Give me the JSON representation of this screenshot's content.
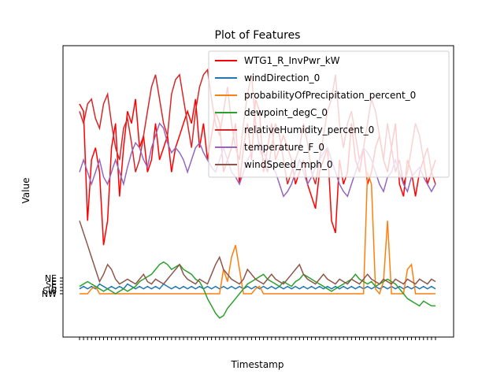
{
  "chart_data": {
    "type": "line",
    "title": "Plot of Features",
    "xlabel": "Timestamp",
    "ylabel": "Value",
    "legend_position": "top-right",
    "grid": false,
    "y_category_ticks": [
      "NW",
      "SW",
      "S",
      "SE",
      "E",
      "NE"
    ],
    "series": [
      {
        "name": "WTG1_R_InvPwr_kW",
        "color": "#ff0000",
        "values": [
          0.78,
          0.75,
          0.3,
          0.55,
          0.6,
          0.5,
          0.2,
          0.3,
          0.6,
          0.7,
          0.4,
          0.6,
          0.75,
          0.7,
          0.8,
          0.6,
          0.65,
          0.5,
          0.55,
          0.7,
          0.55,
          0.6,
          0.65,
          0.5,
          0.6,
          0.65,
          0.7,
          0.75,
          0.7,
          0.8,
          0.6,
          0.7,
          0.55,
          0.65,
          0.75,
          0.7,
          0.5,
          0.55,
          0.6,
          0.7,
          0.45,
          0.6,
          0.7,
          0.55,
          0.8,
          0.75,
          0.5,
          0.6,
          0.7,
          0.55,
          0.6,
          0.65,
          0.6,
          0.55,
          0.45,
          0.5,
          0.55,
          0.45,
          0.4,
          0.35,
          0.5,
          0.55,
          0.6,
          0.3,
          0.25,
          0.55,
          0.45,
          0.5,
          0.7,
          0.55,
          0.5,
          0.6,
          0.45,
          0.5,
          0.6,
          0.65,
          0.55,
          0.5,
          0.6,
          0.7,
          0.45,
          0.4,
          0.55,
          0.5,
          0.4,
          0.5,
          0.55,
          0.45,
          0.5,
          0.55
        ]
      },
      {
        "name": "windDirection_0",
        "color": "#1f77b4",
        "values": [
          0.02,
          0.03,
          0.02,
          0.03,
          0.02,
          0.04,
          0.03,
          0.02,
          0.03,
          0.02,
          0.03,
          0.02,
          0.04,
          0.03,
          0.02,
          0.03,
          0.02,
          0.03,
          0.02,
          0.03,
          0.02,
          0.04,
          0.03,
          0.02,
          0.03,
          0.02,
          0.03,
          0.02,
          0.03,
          0.02,
          0.03,
          0.02,
          0.03,
          0.02,
          0.03,
          0.02,
          0.03,
          0.02,
          0.03,
          0.02,
          0.03,
          0.02,
          0.03,
          0.02,
          0.03,
          0.02,
          0.03,
          0.02,
          0.03,
          0.02,
          0.03,
          0.02,
          0.03,
          0.02,
          0.03,
          0.02,
          0.03,
          0.02,
          0.03,
          0.02,
          0.03,
          0.02,
          0.03,
          0.02,
          0.03,
          0.02,
          0.03,
          0.02,
          0.03,
          0.02,
          0.03,
          0.02,
          0.03,
          0.02,
          0.03,
          0.02,
          0.03,
          0.02,
          0.03,
          0.02,
          0.03,
          0.02,
          0.03,
          0.02,
          0.03,
          0.02,
          0.03,
          0.02,
          0.03,
          0.02
        ]
      },
      {
        "name": "probabilityOfPrecipitation_percent_0",
        "color": "#ff7f0e",
        "values": [
          0.0,
          0.0,
          0.0,
          0.02,
          0.03,
          0.0,
          0.0,
          0.0,
          0.0,
          0.0,
          0.0,
          0.0,
          0.0,
          0.0,
          0.0,
          0.0,
          0.0,
          0.0,
          0.0,
          0.0,
          0.0,
          0.0,
          0.0,
          0.0,
          0.0,
          0.0,
          0.0,
          0.0,
          0.0,
          0.0,
          0.0,
          0.0,
          0.0,
          0.0,
          0.0,
          0.0,
          0.1,
          0.05,
          0.15,
          0.2,
          0.1,
          0.0,
          0.0,
          0.0,
          0.02,
          0.03,
          0.0,
          0.0,
          0.0,
          0.0,
          0.0,
          0.0,
          0.0,
          0.0,
          0.0,
          0.0,
          0.0,
          0.0,
          0.0,
          0.0,
          0.0,
          0.0,
          0.0,
          0.0,
          0.0,
          0.0,
          0.0,
          0.0,
          0.0,
          0.0,
          0.0,
          0.0,
          0.5,
          0.45,
          0.02,
          0.0,
          0.05,
          0.3,
          0.0,
          0.0,
          0.0,
          0.0,
          0.1,
          0.12,
          0.0,
          0.0,
          0.0,
          0.0,
          0.0,
          0.0
        ]
      },
      {
        "name": "dewpoint_degC_0",
        "color": "#2ca02c",
        "values": [
          0.03,
          0.04,
          0.05,
          0.04,
          0.03,
          0.02,
          0.01,
          0.02,
          0.01,
          0.0,
          0.01,
          0.02,
          0.01,
          0.02,
          0.03,
          0.05,
          0.06,
          0.07,
          0.08,
          0.1,
          0.12,
          0.13,
          0.12,
          0.1,
          0.11,
          0.12,
          0.1,
          0.09,
          0.08,
          0.06,
          0.05,
          0.02,
          -0.02,
          -0.05,
          -0.08,
          -0.1,
          -0.09,
          -0.06,
          -0.04,
          -0.02,
          0.0,
          0.02,
          0.04,
          0.05,
          0.06,
          0.07,
          0.08,
          0.06,
          0.05,
          0.04,
          0.03,
          0.05,
          0.04,
          0.03,
          0.05,
          0.06,
          0.08,
          0.07,
          0.06,
          0.05,
          0.04,
          0.03,
          0.02,
          0.01,
          0.02,
          0.03,
          0.04,
          0.05,
          0.06,
          0.08,
          0.06,
          0.05,
          0.04,
          0.05,
          0.03,
          0.04,
          0.05,
          0.06,
          0.05,
          0.04,
          0.02,
          0.0,
          -0.02,
          -0.03,
          -0.04,
          -0.05,
          -0.03,
          -0.04,
          -0.05,
          -0.05
        ]
      },
      {
        "name": "relativeHumidity_percent_0",
        "color": "#d62728",
        "values": [
          0.75,
          0.7,
          0.78,
          0.8,
          0.72,
          0.68,
          0.78,
          0.82,
          0.7,
          0.6,
          0.55,
          0.68,
          0.72,
          0.62,
          0.5,
          0.55,
          0.65,
          0.75,
          0.85,
          0.9,
          0.8,
          0.7,
          0.65,
          0.82,
          0.88,
          0.9,
          0.8,
          0.7,
          0.6,
          0.75,
          0.85,
          0.9,
          0.92,
          0.8,
          0.7,
          0.65,
          0.75,
          0.85,
          0.7,
          0.6,
          0.55,
          0.7,
          0.82,
          0.9,
          0.7,
          0.6,
          0.55,
          0.5,
          0.6,
          0.7,
          0.65,
          0.55,
          0.45,
          0.5,
          0.55,
          0.6,
          0.7,
          0.62,
          0.5,
          0.45,
          0.55,
          0.65,
          0.75,
          0.8,
          0.9,
          0.7,
          0.6,
          0.7,
          0.75,
          0.65,
          0.55,
          0.6,
          0.7,
          0.8,
          0.75,
          0.65,
          0.55,
          0.7,
          0.6,
          0.5,
          0.55,
          0.45,
          0.5,
          0.6,
          0.7,
          0.65,
          0.55,
          0.6,
          0.5,
          0.45
        ]
      },
      {
        "name": "temperature_F_0",
        "color": "#9467bd",
        "values": [
          0.5,
          0.55,
          0.5,
          0.45,
          0.5,
          0.55,
          0.48,
          0.45,
          0.5,
          0.55,
          0.5,
          0.45,
          0.52,
          0.58,
          0.62,
          0.6,
          0.55,
          0.52,
          0.6,
          0.65,
          0.7,
          0.68,
          0.62,
          0.58,
          0.6,
          0.58,
          0.55,
          0.5,
          0.55,
          0.6,
          0.62,
          0.58,
          0.55,
          0.52,
          0.5,
          0.55,
          0.6,
          0.55,
          0.5,
          0.48,
          0.45,
          0.5,
          0.55,
          0.58,
          0.6,
          0.62,
          0.58,
          0.55,
          0.52,
          0.5,
          0.45,
          0.4,
          0.42,
          0.45,
          0.5,
          0.55,
          0.5,
          0.45,
          0.48,
          0.52,
          0.55,
          0.58,
          0.6,
          0.55,
          0.5,
          0.45,
          0.42,
          0.4,
          0.45,
          0.5,
          0.55,
          0.6,
          0.58,
          0.55,
          0.5,
          0.45,
          0.42,
          0.48,
          0.5,
          0.55,
          0.5,
          0.45,
          0.42,
          0.48,
          0.5,
          0.52,
          0.48,
          0.45,
          0.42,
          0.45
        ]
      },
      {
        "name": "windSpeed_mph_0",
        "color": "#8c564b",
        "values": [
          0.3,
          0.25,
          0.2,
          0.15,
          0.1,
          0.05,
          0.08,
          0.12,
          0.1,
          0.06,
          0.04,
          0.05,
          0.06,
          0.05,
          0.04,
          0.06,
          0.08,
          0.05,
          0.04,
          0.06,
          0.05,
          0.04,
          0.06,
          0.08,
          0.1,
          0.12,
          0.08,
          0.06,
          0.05,
          0.04,
          0.06,
          0.05,
          0.04,
          0.08,
          0.12,
          0.15,
          0.1,
          0.08,
          0.06,
          0.05,
          0.04,
          0.06,
          0.1,
          0.08,
          0.06,
          0.05,
          0.04,
          0.06,
          0.08,
          0.06,
          0.05,
          0.04,
          0.06,
          0.08,
          0.1,
          0.12,
          0.08,
          0.06,
          0.05,
          0.04,
          0.06,
          0.08,
          0.06,
          0.05,
          0.04,
          0.06,
          0.05,
          0.04,
          0.06,
          0.05,
          0.04,
          0.06,
          0.08,
          0.06,
          0.05,
          0.04,
          0.06,
          0.05,
          0.04,
          0.06,
          0.05,
          0.04,
          0.06,
          0.05,
          0.04,
          0.06,
          0.05,
          0.04,
          0.06,
          0.05
        ]
      }
    ]
  }
}
